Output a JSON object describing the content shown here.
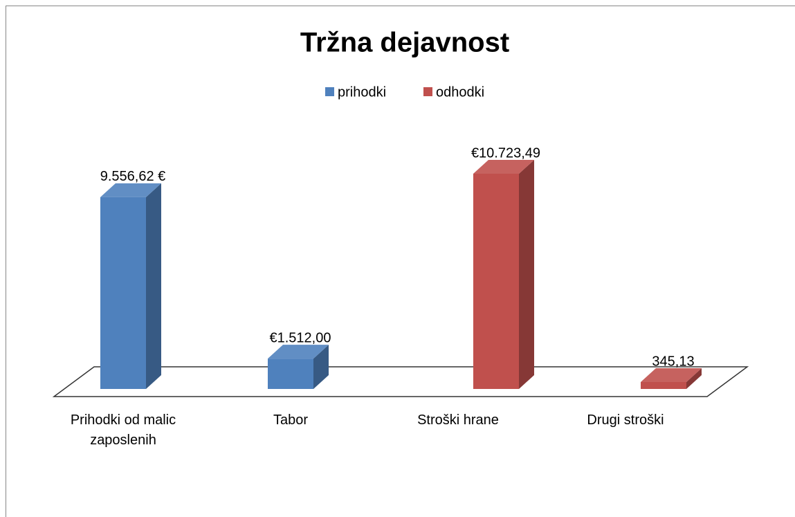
{
  "chart_data": {
    "type": "bar3d",
    "title": "Tržna dejavnost",
    "categories": [
      "Prihodki od malic zaposlenih",
      "Tabor",
      "Stroški hrane",
      "Drugi stroški"
    ],
    "series": [
      {
        "name": "prihodki",
        "color": "#4f81bd",
        "values": [
          9556.62,
          1512,
          null,
          null
        ],
        "value_labels": [
          "9.556,62 €",
          "€1.512,00",
          null,
          null
        ]
      },
      {
        "name": "odhodki",
        "color": "#c0504d",
        "values": [
          null,
          null,
          10723.49,
          345.13
        ],
        "value_labels": [
          null,
          null,
          "€10.723,49",
          "345,13"
        ]
      }
    ],
    "legend": "top"
  }
}
